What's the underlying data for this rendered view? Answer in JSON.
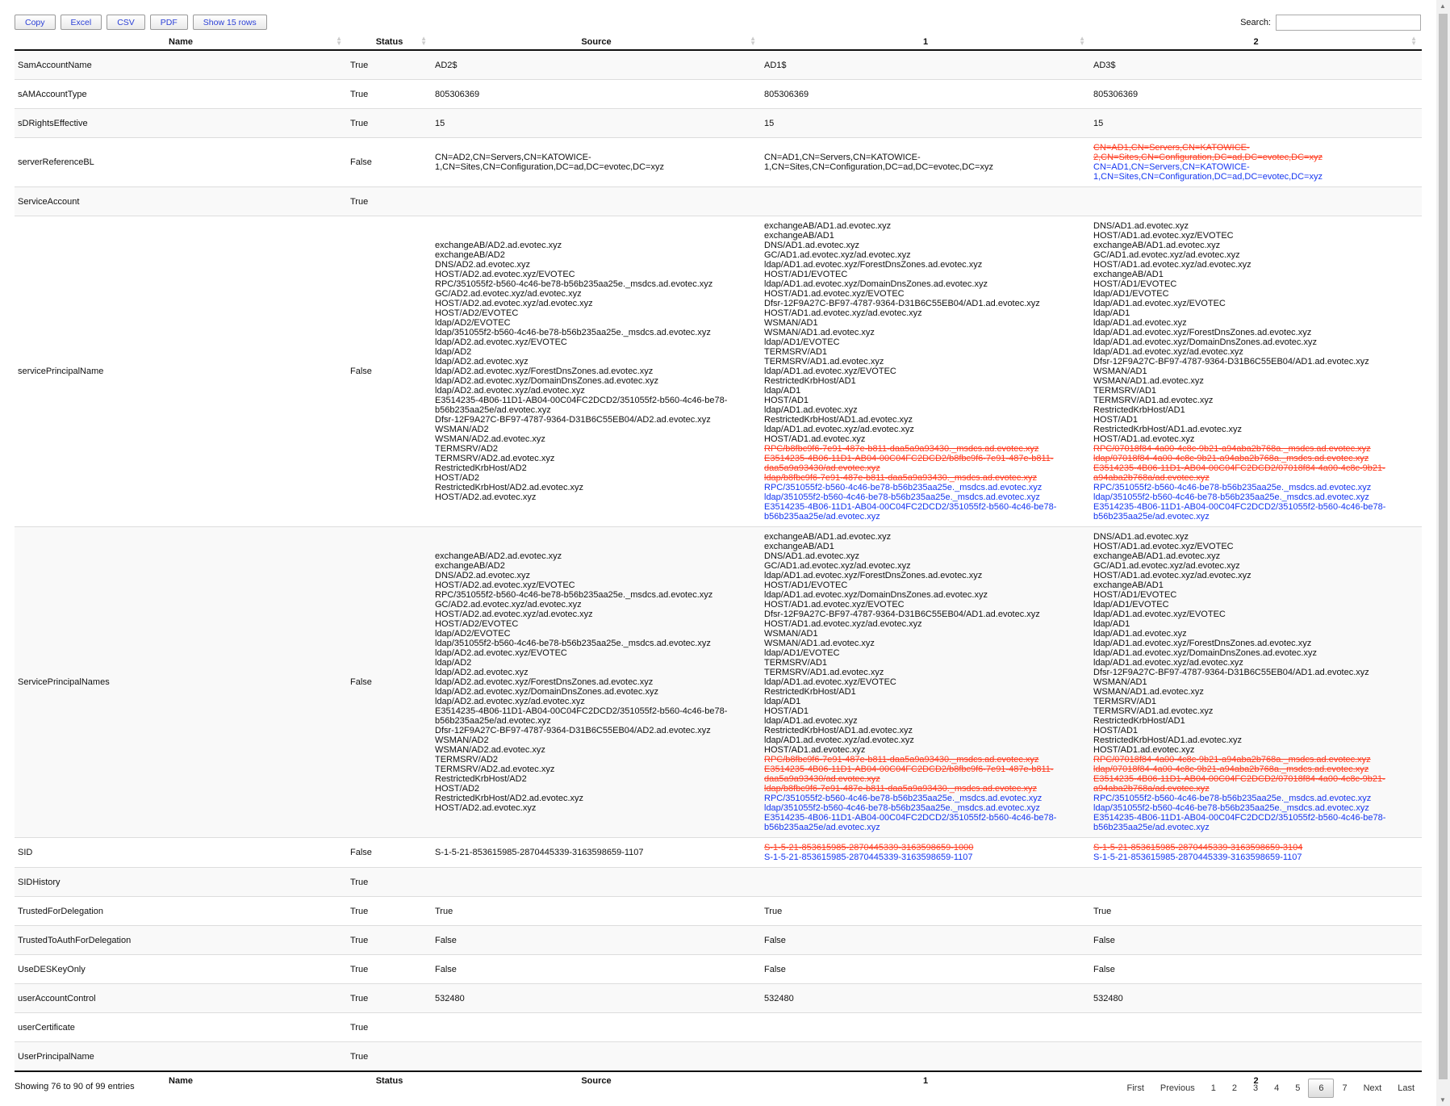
{
  "toolbar": {
    "buttons": [
      "Copy",
      "Excel",
      "CSV",
      "PDF",
      "Show 15 rows"
    ]
  },
  "search": {
    "label": "Search:",
    "value": ""
  },
  "columns": [
    "Name",
    "Status",
    "Source",
    "1",
    "2"
  ],
  "rows": [
    {
      "name": "SamAccountName",
      "status": "True",
      "source": {
        "lines": [
          "AD2$"
        ]
      },
      "c1": {
        "lines": [
          "AD1$"
        ]
      },
      "c2": {
        "lines": [
          "AD3$"
        ]
      }
    },
    {
      "name": "sAMAccountType",
      "status": "True",
      "source": {
        "lines": [
          "805306369"
        ]
      },
      "c1": {
        "lines": [
          "805306369"
        ]
      },
      "c2": {
        "lines": [
          "805306369"
        ]
      }
    },
    {
      "name": "sDRightsEffective",
      "status": "True",
      "source": {
        "lines": [
          "15"
        ]
      },
      "c1": {
        "lines": [
          "15"
        ]
      },
      "c2": {
        "lines": [
          "15"
        ]
      }
    },
    {
      "name": "serverReferenceBL",
      "status": "False",
      "source": {
        "lines": [
          "CN=AD2,CN=Servers,CN=KATOWICE-",
          "1,CN=Sites,CN=Configuration,DC=ad,DC=evotec,DC=xyz"
        ]
      },
      "c1": {
        "lines": [
          "CN=AD1,CN=Servers,CN=KATOWICE-",
          "1,CN=Sites,CN=Configuration,DC=ad,DC=evotec,DC=xyz"
        ]
      },
      "c2": {
        "lines": [],
        "removed": [
          "CN=AD1,CN=Servers,CN=KATOWICE-",
          "2,CN=Sites,CN=Configuration,DC=ad,DC=evotec,DC=xyz"
        ],
        "added": [
          "CN=AD1,CN=Servers,CN=KATOWICE-",
          "1,CN=Sites,CN=Configuration,DC=ad,DC=evotec,DC=xyz"
        ]
      }
    },
    {
      "name": "ServiceAccount",
      "status": "True",
      "source": {
        "lines": []
      },
      "c1": {
        "lines": []
      },
      "c2": {
        "lines": []
      }
    },
    {
      "name": "servicePrincipalName",
      "status": "False",
      "source": {
        "lines": [
          "exchangeAB/AD2.ad.evotec.xyz",
          "exchangeAB/AD2",
          "DNS/AD2.ad.evotec.xyz",
          "HOST/AD2.ad.evotec.xyz/EVOTEC",
          "RPC/351055f2-b560-4c46-be78-b56b235aa25e._msdcs.ad.evotec.xyz",
          "GC/AD2.ad.evotec.xyz/ad.evotec.xyz",
          "HOST/AD2.ad.evotec.xyz/ad.evotec.xyz",
          "HOST/AD2/EVOTEC",
          "ldap/AD2/EVOTEC",
          "ldap/351055f2-b560-4c46-be78-b56b235aa25e._msdcs.ad.evotec.xyz",
          "ldap/AD2.ad.evotec.xyz/EVOTEC",
          "ldap/AD2",
          "ldap/AD2.ad.evotec.xyz",
          "ldap/AD2.ad.evotec.xyz/ForestDnsZones.ad.evotec.xyz",
          "ldap/AD2.ad.evotec.xyz/DomainDnsZones.ad.evotec.xyz",
          "ldap/AD2.ad.evotec.xyz/ad.evotec.xyz",
          "E3514235-4B06-11D1-AB04-00C04FC2DCD2/351055f2-b560-4c46-be78-",
          "b56b235aa25e/ad.evotec.xyz",
          "Dfsr-12F9A27C-BF97-4787-9364-D31B6C55EB04/AD2.ad.evotec.xyz",
          "WSMAN/AD2",
          "WSMAN/AD2.ad.evotec.xyz",
          "TERMSRV/AD2",
          "TERMSRV/AD2.ad.evotec.xyz",
          "RestrictedKrbHost/AD2",
          "HOST/AD2",
          "RestrictedKrbHost/AD2.ad.evotec.xyz",
          "HOST/AD2.ad.evotec.xyz"
        ]
      },
      "c1": {
        "lines": [
          "exchangeAB/AD1.ad.evotec.xyz",
          "exchangeAB/AD1",
          "DNS/AD1.ad.evotec.xyz",
          "GC/AD1.ad.evotec.xyz/ad.evotec.xyz",
          "ldap/AD1.ad.evotec.xyz/ForestDnsZones.ad.evotec.xyz",
          "HOST/AD1/EVOTEC",
          "ldap/AD1.ad.evotec.xyz/DomainDnsZones.ad.evotec.xyz",
          "HOST/AD1.ad.evotec.xyz/EVOTEC",
          "Dfsr-12F9A27C-BF97-4787-9364-D31B6C55EB04/AD1.ad.evotec.xyz",
          "HOST/AD1.ad.evotec.xyz/ad.evotec.xyz",
          "WSMAN/AD1",
          "WSMAN/AD1.ad.evotec.xyz",
          "ldap/AD1/EVOTEC",
          "TERMSRV/AD1",
          "TERMSRV/AD1.ad.evotec.xyz",
          "ldap/AD1.ad.evotec.xyz/EVOTEC",
          "RestrictedKrbHost/AD1",
          "ldap/AD1",
          "HOST/AD1",
          "ldap/AD1.ad.evotec.xyz",
          "RestrictedKrbHost/AD1.ad.evotec.xyz",
          "ldap/AD1.ad.evotec.xyz/ad.evotec.xyz",
          "HOST/AD1.ad.evotec.xyz"
        ],
        "removed": [
          "RPC/b8fbc9f6-7e91-487e-b811-daa5a9a93430._msdcs.ad.evotec.xyz",
          "E3514235-4B06-11D1-AB04-00C04FC2DCD2/b8fbc9f6-7e91-487e-b811-",
          "daa5a9a93430/ad.evotec.xyz",
          "ldap/b8fbc9f6-7e91-487e-b811-daa5a9a93430._msdcs.ad.evotec.xyz"
        ],
        "added": [
          "RPC/351055f2-b560-4c46-be78-b56b235aa25e._msdcs.ad.evotec.xyz",
          "ldap/351055f2-b560-4c46-be78-b56b235aa25e._msdcs.ad.evotec.xyz",
          "E3514235-4B06-11D1-AB04-00C04FC2DCD2/351055f2-b560-4c46-be78-",
          "b56b235aa25e/ad.evotec.xyz"
        ]
      },
      "c2": {
        "lines": [
          "DNS/AD1.ad.evotec.xyz",
          "HOST/AD1.ad.evotec.xyz/EVOTEC",
          "exchangeAB/AD1.ad.evotec.xyz",
          "GC/AD1.ad.evotec.xyz/ad.evotec.xyz",
          "HOST/AD1.ad.evotec.xyz/ad.evotec.xyz",
          "exchangeAB/AD1",
          "HOST/AD1/EVOTEC",
          "ldap/AD1/EVOTEC",
          "ldap/AD1.ad.evotec.xyz/EVOTEC",
          "ldap/AD1",
          "ldap/AD1.ad.evotec.xyz",
          "ldap/AD1.ad.evotec.xyz/ForestDnsZones.ad.evotec.xyz",
          "ldap/AD1.ad.evotec.xyz/DomainDnsZones.ad.evotec.xyz",
          "ldap/AD1.ad.evotec.xyz/ad.evotec.xyz",
          "Dfsr-12F9A27C-BF97-4787-9364-D31B6C55EB04/AD1.ad.evotec.xyz",
          "WSMAN/AD1",
          "WSMAN/AD1.ad.evotec.xyz",
          "TERMSRV/AD1",
          "TERMSRV/AD1.ad.evotec.xyz",
          "RestrictedKrbHost/AD1",
          "HOST/AD1",
          "RestrictedKrbHost/AD1.ad.evotec.xyz",
          "HOST/AD1.ad.evotec.xyz"
        ],
        "removed": [
          "RPC/07018f84-4a00-4c8c-9b21-a94aba2b768a._msdcs.ad.evotec.xyz",
          "ldap/07018f84-4a00-4c8c-9b21-a94aba2b768a._msdcs.ad.evotec.xyz",
          "E3514235-4B06-11D1-AB04-00C04FC2DCD2/07018f84-4a00-4c8c-9b21-",
          "a94aba2b768a/ad.evotec.xyz"
        ],
        "added": [
          "RPC/351055f2-b560-4c46-be78-b56b235aa25e._msdcs.ad.evotec.xyz",
          "ldap/351055f2-b560-4c46-be78-b56b235aa25e._msdcs.ad.evotec.xyz",
          "E3514235-4B06-11D1-AB04-00C04FC2DCD2/351055f2-b560-4c46-be78-",
          "b56b235aa25e/ad.evotec.xyz"
        ]
      }
    },
    {
      "name": "ServicePrincipalNames",
      "status": "False",
      "source": {
        "lines": [
          "exchangeAB/AD2.ad.evotec.xyz",
          "exchangeAB/AD2",
          "DNS/AD2.ad.evotec.xyz",
          "HOST/AD2.ad.evotec.xyz/EVOTEC",
          "RPC/351055f2-b560-4c46-be78-b56b235aa25e._msdcs.ad.evotec.xyz",
          "GC/AD2.ad.evotec.xyz/ad.evotec.xyz",
          "HOST/AD2.ad.evotec.xyz/ad.evotec.xyz",
          "HOST/AD2/EVOTEC",
          "ldap/AD2/EVOTEC",
          "ldap/351055f2-b560-4c46-be78-b56b235aa25e._msdcs.ad.evotec.xyz",
          "ldap/AD2.ad.evotec.xyz/EVOTEC",
          "ldap/AD2",
          "ldap/AD2.ad.evotec.xyz",
          "ldap/AD2.ad.evotec.xyz/ForestDnsZones.ad.evotec.xyz",
          "ldap/AD2.ad.evotec.xyz/DomainDnsZones.ad.evotec.xyz",
          "ldap/AD2.ad.evotec.xyz/ad.evotec.xyz",
          "E3514235-4B06-11D1-AB04-00C04FC2DCD2/351055f2-b560-4c46-be78-",
          "b56b235aa25e/ad.evotec.xyz",
          "Dfsr-12F9A27C-BF97-4787-9364-D31B6C55EB04/AD2.ad.evotec.xyz",
          "WSMAN/AD2",
          "WSMAN/AD2.ad.evotec.xyz",
          "TERMSRV/AD2",
          "TERMSRV/AD2.ad.evotec.xyz",
          "RestrictedKrbHost/AD2",
          "HOST/AD2",
          "RestrictedKrbHost/AD2.ad.evotec.xyz",
          "HOST/AD2.ad.evotec.xyz"
        ]
      },
      "c1": {
        "lines": [
          "exchangeAB/AD1.ad.evotec.xyz",
          "exchangeAB/AD1",
          "DNS/AD1.ad.evotec.xyz",
          "GC/AD1.ad.evotec.xyz/ad.evotec.xyz",
          "ldap/AD1.ad.evotec.xyz/ForestDnsZones.ad.evotec.xyz",
          "HOST/AD1/EVOTEC",
          "ldap/AD1.ad.evotec.xyz/DomainDnsZones.ad.evotec.xyz",
          "HOST/AD1.ad.evotec.xyz/EVOTEC",
          "Dfsr-12F9A27C-BF97-4787-9364-D31B6C55EB04/AD1.ad.evotec.xyz",
          "HOST/AD1.ad.evotec.xyz/ad.evotec.xyz",
          "WSMAN/AD1",
          "WSMAN/AD1.ad.evotec.xyz",
          "ldap/AD1/EVOTEC",
          "TERMSRV/AD1",
          "TERMSRV/AD1.ad.evotec.xyz",
          "ldap/AD1.ad.evotec.xyz/EVOTEC",
          "RestrictedKrbHost/AD1",
          "ldap/AD1",
          "HOST/AD1",
          "ldap/AD1.ad.evotec.xyz",
          "RestrictedKrbHost/AD1.ad.evotec.xyz",
          "ldap/AD1.ad.evotec.xyz/ad.evotec.xyz",
          "HOST/AD1.ad.evotec.xyz"
        ],
        "removed": [
          "RPC/b8fbc9f6-7e91-487e-b811-daa5a9a93430._msdcs.ad.evotec.xyz",
          "E3514235-4B06-11D1-AB04-00C04FC2DCD2/b8fbc9f6-7e91-487e-b811-",
          "daa5a9a93430/ad.evotec.xyz",
          "ldap/b8fbc9f6-7e91-487e-b811-daa5a9a93430._msdcs.ad.evotec.xyz"
        ],
        "added": [
          "RPC/351055f2-b560-4c46-be78-b56b235aa25e._msdcs.ad.evotec.xyz",
          "ldap/351055f2-b560-4c46-be78-b56b235aa25e._msdcs.ad.evotec.xyz",
          "E3514235-4B06-11D1-AB04-00C04FC2DCD2/351055f2-b560-4c46-be78-",
          "b56b235aa25e/ad.evotec.xyz"
        ]
      },
      "c2": {
        "lines": [
          "DNS/AD1.ad.evotec.xyz",
          "HOST/AD1.ad.evotec.xyz/EVOTEC",
          "exchangeAB/AD1.ad.evotec.xyz",
          "GC/AD1.ad.evotec.xyz/ad.evotec.xyz",
          "HOST/AD1.ad.evotec.xyz/ad.evotec.xyz",
          "exchangeAB/AD1",
          "HOST/AD1/EVOTEC",
          "ldap/AD1/EVOTEC",
          "ldap/AD1.ad.evotec.xyz/EVOTEC",
          "ldap/AD1",
          "ldap/AD1.ad.evotec.xyz",
          "ldap/AD1.ad.evotec.xyz/ForestDnsZones.ad.evotec.xyz",
          "ldap/AD1.ad.evotec.xyz/DomainDnsZones.ad.evotec.xyz",
          "ldap/AD1.ad.evotec.xyz/ad.evotec.xyz",
          "Dfsr-12F9A27C-BF97-4787-9364-D31B6C55EB04/AD1.ad.evotec.xyz",
          "WSMAN/AD1",
          "WSMAN/AD1.ad.evotec.xyz",
          "TERMSRV/AD1",
          "TERMSRV/AD1.ad.evotec.xyz",
          "RestrictedKrbHost/AD1",
          "HOST/AD1",
          "RestrictedKrbHost/AD1.ad.evotec.xyz",
          "HOST/AD1.ad.evotec.xyz"
        ],
        "removed": [
          "RPC/07018f84-4a00-4c8c-9b21-a94aba2b768a._msdcs.ad.evotec.xyz",
          "ldap/07018f84-4a00-4c8c-9b21-a94aba2b768a._msdcs.ad.evotec.xyz",
          "E3514235-4B06-11D1-AB04-00C04FC2DCD2/07018f84-4a00-4c8c-9b21-",
          "a94aba2b768a/ad.evotec.xyz"
        ],
        "added": [
          "RPC/351055f2-b560-4c46-be78-b56b235aa25e._msdcs.ad.evotec.xyz",
          "ldap/351055f2-b560-4c46-be78-b56b235aa25e._msdcs.ad.evotec.xyz",
          "E3514235-4B06-11D1-AB04-00C04FC2DCD2/351055f2-b560-4c46-be78-",
          "b56b235aa25e/ad.evotec.xyz"
        ]
      }
    },
    {
      "name": "SID",
      "status": "False",
      "source": {
        "lines": [
          "S-1-5-21-853615985-2870445339-3163598659-1107"
        ]
      },
      "c1": {
        "lines": [],
        "removed": [
          "S-1-5-21-853615985-2870445339-3163598659-1000"
        ],
        "added": [
          "S-1-5-21-853615985-2870445339-3163598659-1107"
        ]
      },
      "c2": {
        "lines": [],
        "removed": [
          "S-1-5-21-853615985-2870445339-3163598659-3104"
        ],
        "added": [
          "S-1-5-21-853615985-2870445339-3163598659-1107"
        ]
      }
    },
    {
      "name": "SIDHistory",
      "status": "True",
      "source": {
        "lines": []
      },
      "c1": {
        "lines": []
      },
      "c2": {
        "lines": []
      }
    },
    {
      "name": "TrustedForDelegation",
      "status": "True",
      "source": {
        "lines": [
          "True"
        ]
      },
      "c1": {
        "lines": [
          "True"
        ]
      },
      "c2": {
        "lines": [
          "True"
        ]
      }
    },
    {
      "name": "TrustedToAuthForDelegation",
      "status": "True",
      "source": {
        "lines": [
          "False"
        ]
      },
      "c1": {
        "lines": [
          "False"
        ]
      },
      "c2": {
        "lines": [
          "False"
        ]
      }
    },
    {
      "name": "UseDESKeyOnly",
      "status": "True",
      "source": {
        "lines": [
          "False"
        ]
      },
      "c1": {
        "lines": [
          "False"
        ]
      },
      "c2": {
        "lines": [
          "False"
        ]
      }
    },
    {
      "name": "userAccountControl",
      "status": "True",
      "source": {
        "lines": [
          "532480"
        ]
      },
      "c1": {
        "lines": [
          "532480"
        ]
      },
      "c2": {
        "lines": [
          "532480"
        ]
      }
    },
    {
      "name": "userCertificate",
      "status": "True",
      "source": {
        "lines": []
      },
      "c1": {
        "lines": []
      },
      "c2": {
        "lines": []
      }
    },
    {
      "name": "UserPrincipalName",
      "status": "True",
      "source": {
        "lines": []
      },
      "c1": {
        "lines": []
      },
      "c2": {
        "lines": []
      }
    }
  ],
  "footer": {
    "info": "Showing 76 to 90 of 99 entries",
    "pager": [
      "First",
      "Previous",
      "1",
      "2",
      "3",
      "4",
      "5",
      "6",
      "7",
      "Next",
      "Last"
    ],
    "current_page": "6"
  },
  "colors": {
    "removed": "#ff3b1f",
    "added": "#1536f0"
  }
}
